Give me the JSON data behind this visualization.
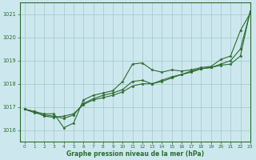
{
  "xlabel": "Graphe pression niveau de la mer (hPa)",
  "xlim": [
    -0.5,
    23
  ],
  "ylim": [
    1015.5,
    1021.5
  ],
  "yticks": [
    1016,
    1017,
    1018,
    1019,
    1020,
    1021
  ],
  "xticks": [
    0,
    1,
    2,
    3,
    4,
    5,
    6,
    7,
    8,
    9,
    10,
    11,
    12,
    13,
    14,
    15,
    16,
    17,
    18,
    19,
    20,
    21,
    22,
    23
  ],
  "background_color": "#cce8ee",
  "grid_color": "#aacccc",
  "line_color": "#2d6a2d",
  "series": [
    [
      1016.9,
      1016.8,
      1016.7,
      1016.7,
      1016.1,
      1016.3,
      1017.3,
      1017.5,
      1017.6,
      1017.7,
      1018.1,
      1018.85,
      1018.9,
      1018.6,
      1018.5,
      1018.6,
      1018.55,
      1018.6,
      1018.7,
      1018.75,
      1019.05,
      1019.2,
      1020.3,
      1021.05
    ],
    [
      1016.9,
      1016.75,
      1016.65,
      1016.6,
      1016.5,
      1016.65,
      1017.15,
      1017.35,
      1017.5,
      1017.6,
      1017.75,
      1018.1,
      1018.15,
      1018.0,
      1018.1,
      1018.25,
      1018.4,
      1018.5,
      1018.65,
      1018.7,
      1018.85,
      1019.0,
      1019.5,
      1021.1
    ],
    [
      1016.9,
      1016.8,
      1016.6,
      1016.55,
      1016.6,
      1016.7,
      1017.1,
      1017.3,
      1017.4,
      1017.5,
      1017.65,
      1017.9,
      1018.0,
      1018.0,
      1018.15,
      1018.3,
      1018.4,
      1018.55,
      1018.65,
      1018.7,
      1018.8,
      1018.85,
      1019.2,
      1021.15
    ]
  ]
}
